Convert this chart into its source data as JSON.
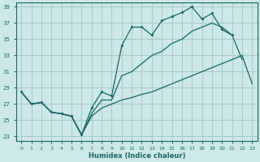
{
  "xlabel": "Humidex (Indice chaleur)",
  "ylabel": "",
  "bg_color": "#cce8e8",
  "grid_color": "#aacccc",
  "line_color": "#1a6666",
  "xlim": [
    -0.5,
    23.5
  ],
  "ylim": [
    22.5,
    39.5
  ],
  "xticks": [
    0,
    1,
    2,
    3,
    4,
    5,
    6,
    7,
    8,
    9,
    10,
    11,
    12,
    13,
    14,
    15,
    16,
    17,
    18,
    19,
    20,
    21,
    22,
    23
  ],
  "yticks": [
    23,
    25,
    27,
    29,
    31,
    33,
    35,
    37,
    39
  ],
  "line1_x": [
    0,
    1,
    2,
    3,
    4,
    5,
    6,
    7,
    8,
    9,
    10,
    11,
    12,
    13,
    14,
    15,
    16,
    17,
    18,
    19,
    20,
    21
  ],
  "line1_y": [
    28.5,
    27.0,
    27.2,
    26.0,
    25.8,
    25.5,
    23.2,
    26.5,
    28.5,
    28.0,
    34.2,
    36.5,
    36.5,
    35.5,
    37.3,
    37.8,
    38.3,
    39.0,
    37.5,
    38.2,
    36.2,
    35.5
  ],
  "line2_x": [
    0,
    1,
    2,
    3,
    4,
    5,
    6,
    7,
    8,
    9,
    10,
    11,
    12,
    13,
    14,
    15,
    16,
    17,
    18,
    19,
    20,
    21,
    22
  ],
  "line2_y": [
    28.5,
    27.0,
    27.2,
    26.0,
    25.8,
    25.5,
    23.2,
    25.8,
    27.5,
    27.5,
    30.5,
    31.0,
    32.0,
    33.0,
    33.5,
    34.5,
    35.0,
    36.0,
    36.5,
    37.0,
    36.5,
    35.5,
    32.5
  ],
  "line3_x": [
    0,
    1,
    2,
    3,
    4,
    5,
    6,
    7,
    8,
    9,
    10,
    11,
    12,
    13,
    14,
    15,
    16,
    17,
    18,
    19,
    20,
    21,
    22,
    23
  ],
  "line3_y": [
    28.5,
    27.0,
    27.2,
    26.0,
    25.8,
    25.5,
    23.2,
    25.5,
    26.5,
    27.0,
    27.5,
    27.8,
    28.2,
    28.5,
    29.0,
    29.5,
    30.0,
    30.5,
    31.0,
    31.5,
    32.0,
    32.5,
    33.0,
    29.5
  ]
}
